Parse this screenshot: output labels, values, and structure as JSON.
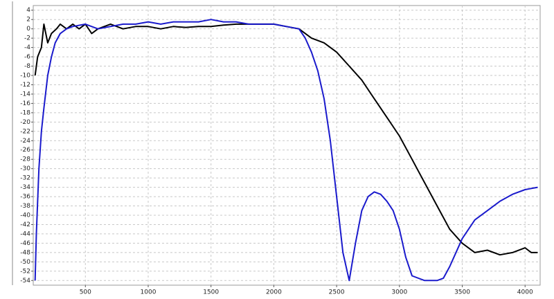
{
  "chart_data": {
    "type": "line",
    "grid": true,
    "xlim": [
      85,
      4120
    ],
    "ylim": [
      -55,
      5
    ],
    "xticks": [
      500,
      1000,
      1500,
      2000,
      2500,
      3000,
      3500,
      4000
    ],
    "yticks": [
      4,
      2,
      0,
      -2,
      -4,
      -6,
      -8,
      -10,
      -12,
      -14,
      -16,
      -18,
      -20,
      -22,
      -24,
      -26,
      -28,
      -30,
      -32,
      -34,
      -36,
      -38,
      -40,
      -42,
      -44,
      -46,
      -48,
      -50,
      -52,
      -54
    ],
    "series": [
      {
        "color": "#000000",
        "x": [
          100,
          120,
          150,
          170,
          200,
          230,
          270,
          300,
          350,
          400,
          450,
          500,
          550,
          600,
          700,
          800,
          900,
          1000,
          1100,
          1200,
          1300,
          1400,
          1500,
          1600,
          1700,
          1800,
          1900,
          2000,
          2100,
          2200,
          2300,
          2400,
          2500,
          2600,
          2700,
          2800,
          2900,
          3000,
          3100,
          3200,
          3300,
          3400,
          3500,
          3600,
          3700,
          3800,
          3900,
          4000,
          4050,
          4100
        ],
        "values": [
          -10,
          -6,
          -4,
          1,
          -3,
          -1,
          0,
          1,
          0,
          1,
          0,
          1,
          -1,
          0,
          1,
          0,
          0.5,
          0.5,
          0,
          0.5,
          0.3,
          0.5,
          0.5,
          0.8,
          1,
          1,
          1,
          1,
          0.5,
          0,
          -2,
          -3,
          -5,
          -8,
          -11,
          -15,
          -19,
          -23,
          -28,
          -33,
          -38,
          -43,
          -46,
          -48,
          -47.5,
          -48.5,
          -48,
          -47,
          -48,
          -48
        ]
      },
      {
        "color": "#1a1acc",
        "x": [
          100,
          110,
          130,
          150,
          170,
          200,
          230,
          260,
          300,
          350,
          400,
          500,
          600,
          700,
          800,
          900,
          1000,
          1100,
          1200,
          1300,
          1400,
          1500,
          1600,
          1700,
          1800,
          1900,
          2000,
          2100,
          2200,
          2250,
          2300,
          2350,
          2400,
          2450,
          2500,
          2550,
          2600,
          2650,
          2700,
          2750,
          2800,
          2850,
          2900,
          2950,
          3000,
          3050,
          3100,
          3200,
          3300,
          3350,
          3400,
          3500,
          3600,
          3700,
          3800,
          3900,
          4000,
          4100
        ],
        "values": [
          -54,
          -44,
          -30,
          -22,
          -17,
          -10,
          -6,
          -3,
          -1,
          0,
          0.5,
          1,
          0,
          0.5,
          1,
          1,
          1.5,
          1,
          1.5,
          1.5,
          1.5,
          2,
          1.5,
          1.5,
          1,
          1,
          1,
          0.5,
          0,
          -2,
          -5,
          -9,
          -15,
          -24,
          -36,
          -48,
          -54,
          -46,
          -39,
          -36,
          -35,
          -35.5,
          -37,
          -39,
          -43,
          -49,
          -53,
          -54,
          -54,
          -53.5,
          -51,
          -45,
          -41,
          -39,
          -37,
          -35.5,
          -34.5,
          -34
        ]
      }
    ]
  }
}
